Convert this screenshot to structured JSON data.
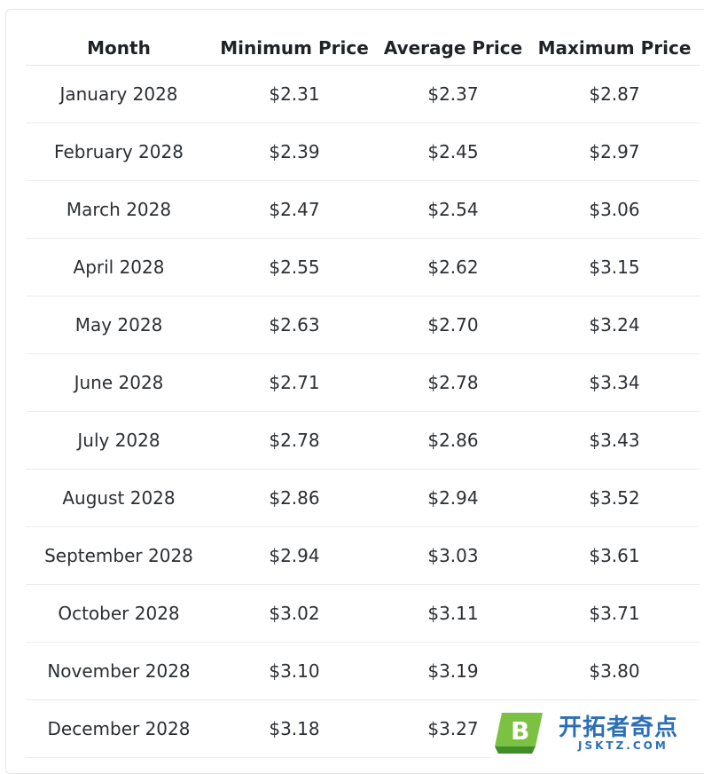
{
  "table": {
    "headers": [
      "Month",
      "Minimum Price",
      "Average Price",
      "Maximum Price"
    ],
    "rows": [
      [
        "January 2028",
        "$2.31",
        "$2.37",
        "$2.87"
      ],
      [
        "February 2028",
        "$2.39",
        "$2.45",
        "$2.97"
      ],
      [
        "March 2028",
        "$2.47",
        "$2.54",
        "$3.06"
      ],
      [
        "April 2028",
        "$2.55",
        "$2.62",
        "$3.15"
      ],
      [
        "May 2028",
        "$2.63",
        "$2.70",
        "$3.24"
      ],
      [
        "June 2028",
        "$2.71",
        "$2.78",
        "$3.34"
      ],
      [
        "July 2028",
        "$2.78",
        "$2.86",
        "$3.43"
      ],
      [
        "August 2028",
        "$2.86",
        "$2.94",
        "$3.52"
      ],
      [
        "September 2028",
        "$2.94",
        "$3.03",
        "$3.61"
      ],
      [
        "October 2028",
        "$3.02",
        "$3.11",
        "$3.71"
      ],
      [
        "November 2028",
        "$3.10",
        "$3.19",
        "$3.80"
      ],
      [
        "December 2028",
        "$3.18",
        "$3.27",
        ""
      ]
    ]
  },
  "watermark": {
    "badge_letter": "B",
    "title": "开拓者奇点",
    "domain": "JSKTZ.COM",
    "colors": {
      "badge_green": "#7cc242",
      "badge_shadow": "#3f8e2a",
      "text_blue": "#2d6fb6"
    }
  }
}
